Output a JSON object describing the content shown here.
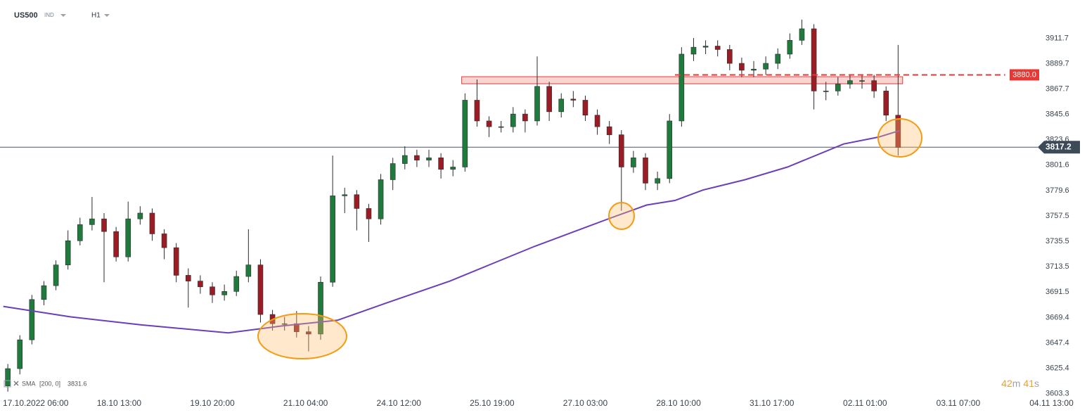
{
  "chart_data": {
    "type": "candlestick",
    "symbol": "US500",
    "market": "IND",
    "timeframe": "H1",
    "up_color": "#1e7b3c",
    "down_color": "#9b1c24",
    "x": [
      -6,
      -2,
      2,
      6,
      10,
      14,
      18,
      22,
      26,
      30,
      34,
      38,
      42,
      46,
      50,
      54,
      58,
      62,
      66,
      70,
      74,
      78,
      82,
      86,
      90,
      94,
      98,
      102,
      106,
      110,
      114,
      118,
      122,
      126,
      130,
      134,
      138,
      142,
      146,
      150,
      154,
      158,
      162,
      166,
      170,
      174,
      178,
      182,
      186,
      190,
      194,
      198,
      202,
      206,
      210,
      214,
      218,
      222,
      226,
      230,
      234,
      238,
      242,
      246,
      250,
      254,
      258,
      262,
      266,
      270,
      274,
      278,
      282,
      286,
      290
    ],
    "open": [
      3610,
      3625,
      3650,
      3685,
      3697,
      3715,
      3736,
      3750,
      3755,
      3744,
      3722,
      3755,
      3760,
      3742,
      3730,
      3706,
      3701,
      3696,
      3689,
      3692,
      3705,
      3715,
      3672,
      3664,
      3664,
      3657,
      3655,
      3700,
      3775,
      3776,
      3764,
      3755,
      3789,
      3803,
      3810,
      3806,
      3808,
      3798,
      3800,
      3858,
      3840,
      3835,
      3835,
      3846,
      3840,
      3870,
      3848,
      3859,
      3858,
      3845,
      3835,
      3828,
      3800,
      3808,
      3786,
      3790,
      3840,
      3898,
      3904,
      3905,
      3902,
      3890,
      3884,
      3885,
      3890,
      3898,
      3910,
      3920,
      3866,
      3866,
      3872,
      3875,
      3875,
      3866,
      3845
    ],
    "high": [
      3629,
      3654,
      3689,
      3701,
      3719,
      3745,
      3756,
      3774,
      3760,
      3748,
      3770,
      3766,
      3764,
      3746,
      3734,
      3712,
      3706,
      3700,
      3698,
      3710,
      3746,
      3720,
      3676,
      3670,
      3675,
      3662,
      3705,
      3810,
      3782,
      3780,
      3768,
      3794,
      3808,
      3818,
      3815,
      3815,
      3812,
      3806,
      3864,
      3876,
      3844,
      3840,
      3852,
      3850,
      3896,
      3874,
      3864,
      3866,
      3862,
      3850,
      3840,
      3832,
      3814,
      3812,
      3796,
      3846,
      3904,
      3912,
      3910,
      3910,
      3906,
      3895,
      3892,
      3896,
      3903,
      3916,
      3928,
      3924,
      3874,
      3878,
      3880,
      3880,
      3880,
      3870,
      3906
    ],
    "low": [
      3605,
      3620,
      3646,
      3680,
      3693,
      3711,
      3732,
      3745,
      3700,
      3718,
      3718,
      3750,
      3736,
      3720,
      3700,
      3678,
      3690,
      3682,
      3684,
      3688,
      3700,
      3665,
      3658,
      3658,
      3652,
      3640,
      3650,
      3696,
      3760,
      3745,
      3735,
      3750,
      3780,
      3798,
      3800,
      3800,
      3790,
      3792,
      3796,
      3835,
      3826,
      3830,
      3830,
      3830,
      3836,
      3840,
      3843,
      3852,
      3840,
      3828,
      3820,
      3762,
      3795,
      3780,
      3780,
      3786,
      3835,
      3892,
      3898,
      3896,
      3884,
      3878,
      3878,
      3880,
      3885,
      3894,
      3906,
      3850,
      3858,
      3862,
      3868,
      3868,
      3860,
      3840,
      3810
    ],
    "close": [
      3625,
      3650,
      3685,
      3697,
      3715,
      3736,
      3750,
      3755,
      3744,
      3722,
      3755,
      3760,
      3742,
      3730,
      3706,
      3701,
      3696,
      3689,
      3692,
      3705,
      3715,
      3672,
      3664,
      3664,
      3657,
      3655,
      3700,
      3775,
      3776,
      3764,
      3755,
      3789,
      3803,
      3810,
      3806,
      3808,
      3798,
      3800,
      3858,
      3840,
      3835,
      3835,
      3846,
      3840,
      3870,
      3848,
      3859,
      3858,
      3845,
      3835,
      3828,
      3800,
      3808,
      3786,
      3790,
      3840,
      3898,
      3904,
      3905,
      3902,
      3890,
      3884,
      3885,
      3890,
      3898,
      3910,
      3920,
      3866,
      3866,
      3872,
      3875,
      3875,
      3866,
      3845,
      3817
    ],
    "xlim": [
      -8.6,
      352.8
    ],
    "xticks": [
      {
        "value": 0,
        "label": "17.10.2022 06:00"
      },
      {
        "value": 31,
        "label": "18.10 13:00"
      },
      {
        "value": 62,
        "label": "19.10 20:00"
      },
      {
        "value": 93,
        "label": "21.10 04:00"
      },
      {
        "value": 124,
        "label": "24.10 12:00"
      },
      {
        "value": 155,
        "label": "25.10 19:00"
      },
      {
        "value": 186,
        "label": "27.10 03:00"
      },
      {
        "value": 217,
        "label": "28.10 10:00"
      },
      {
        "value": 248,
        "label": "31.10 17:00"
      },
      {
        "value": 279,
        "label": "02.11 01:00"
      },
      {
        "value": 310,
        "label": "03.11 07:00"
      },
      {
        "value": 341,
        "label": "04.11 13:00"
      }
    ],
    "ylim": [
      3600,
      3945
    ],
    "yticks": [
      3603.3,
      3625.4,
      3647.4,
      3669.4,
      3691.5,
      3713.5,
      3735.5,
      3757.5,
      3779.6,
      3801.6,
      3823.6,
      3845.6,
      3867.7,
      3889.7,
      3911.7
    ],
    "indicator": {
      "name": "SMA",
      "params": "[200, 0]",
      "color": "#6a3fb8",
      "x": [
        -7.5,
        14.7,
        38.1,
        67.3,
        84.9,
        103.6,
        119.9,
        141,
        155,
        169,
        185.4,
        194.7,
        206.4,
        215.8,
        225.1,
        239.1,
        253.2,
        271.9,
        283.5,
        290.5
      ],
      "values": [
        3679,
        3670,
        3663,
        3656,
        3662,
        3667,
        3682,
        3701,
        3716,
        3731,
        3747,
        3756,
        3767,
        3771,
        3780,
        3789,
        3800,
        3820,
        3826,
        3831.6
      ],
      "last": 3831.6
    },
    "zone": {
      "x": [
        144.9,
        291.5
      ],
      "y": [
        3872.3,
        3878.4
      ],
      "color": "#e53935"
    },
    "level": {
      "value": 3880,
      "label": "3880.0",
      "x": [
        215.8,
        325.6
      ],
      "color": "#e53935"
    },
    "current_price": 3817.2,
    "countdown": {
      "minutes": 42,
      "minutes_unit": "m",
      "seconds": 41,
      "seconds_unit": "s"
    }
  }
}
